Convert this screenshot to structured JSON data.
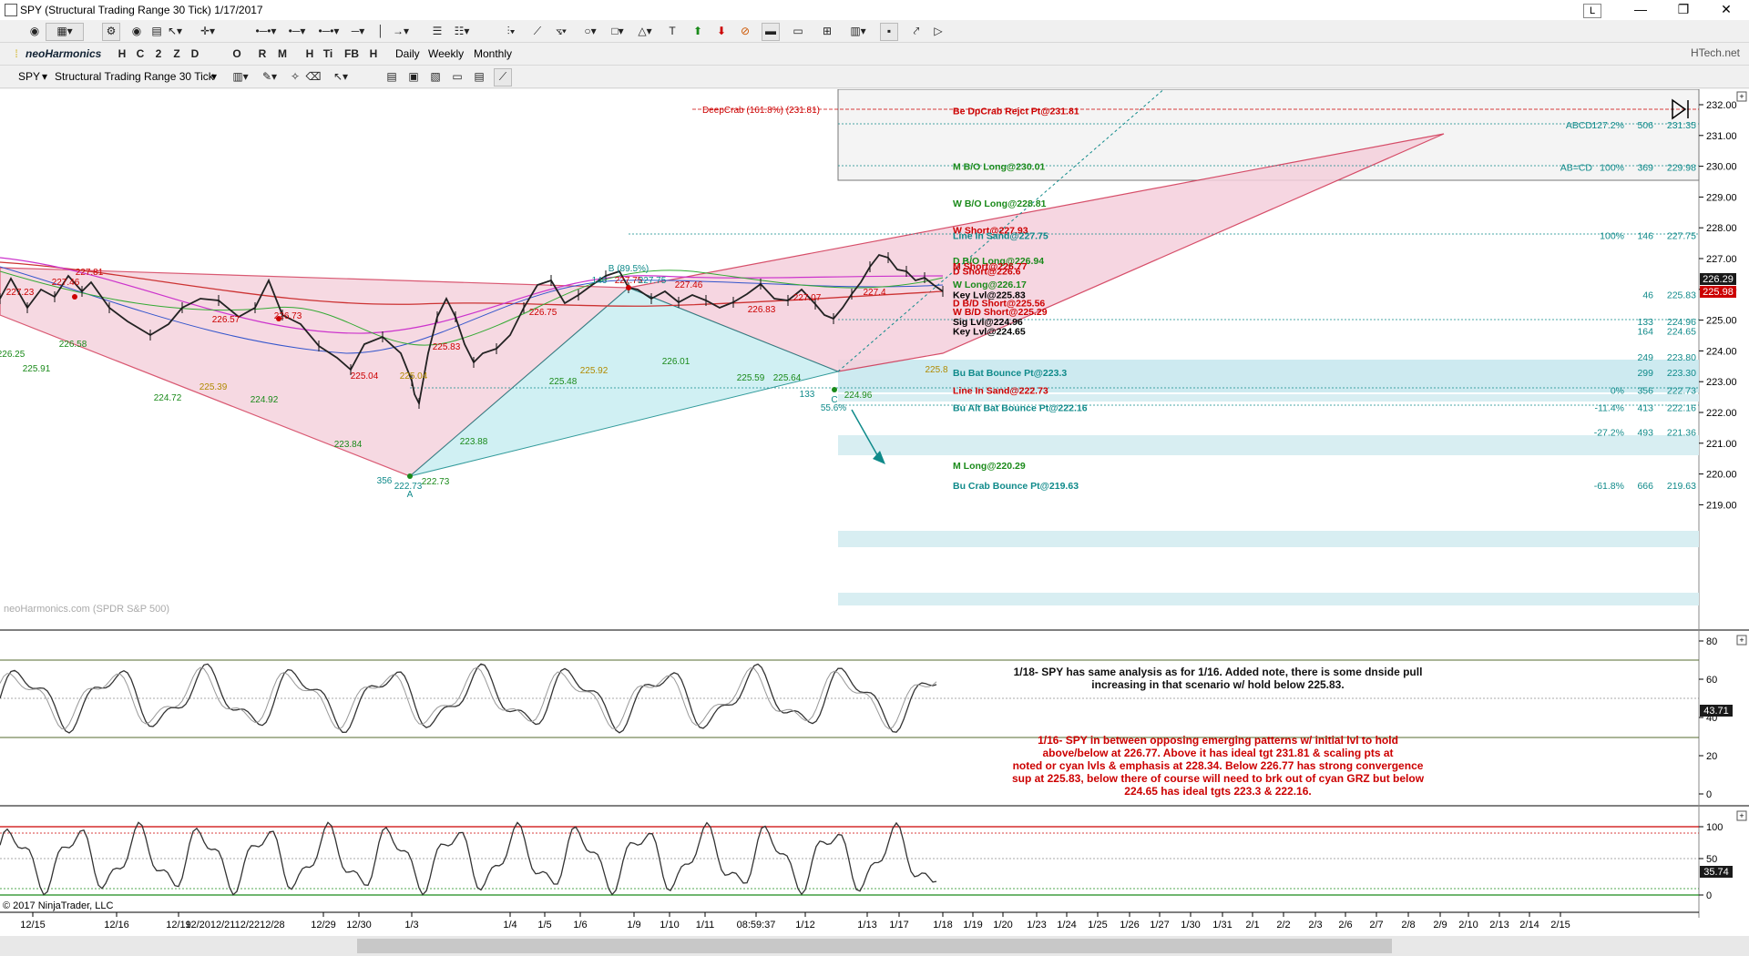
{
  "window": {
    "title": "SPY (Structural Trading Range 30 Tick)  1/17/2017",
    "minimize": "—",
    "maximize": "❐",
    "close": "✕",
    "link_label": "L"
  },
  "toolbar2": {
    "brand": "neoHarmonics",
    "buttons": [
      "H",
      "C",
      "2",
      "Z",
      "D",
      "O",
      "R",
      "M",
      "H",
      "Ti",
      "FB",
      "H"
    ],
    "periods": [
      "Daily",
      "Weekly",
      "Monthly"
    ],
    "site": "HTech.net"
  },
  "toolbar3": {
    "instrument": "SPY",
    "period": "Structural Trading Range 30 Tick"
  },
  "price_chart": {
    "watermark": "neoHarmonics.com (SPDR S&P 500)",
    "y_ticks": [
      "232.00",
      "231.00",
      "230.00",
      "229.00",
      "228.00",
      "227.00",
      "226.00",
      "225.00",
      "224.00",
      "223.00",
      "222.00",
      "221.00",
      "220.00",
      "219.00"
    ],
    "price_badges": [
      "226.29",
      "225.98"
    ],
    "deepcrab_label": "DeepCrab (161.8%) (231.81)",
    "levels": [
      {
        "text": "Be DpCrab Rejct Pt@231.81",
        "color": "#cc0000"
      },
      {
        "text": "M B/O Long@230.01",
        "color": "#1a8a1a"
      },
      {
        "text": "W B/O Long@228.81",
        "color": "#1a8a1a"
      },
      {
        "text": "W Short@227.93",
        "color": "#cc0000"
      },
      {
        "text": "Line In Sand@227.75",
        "color": "#0f8a8a"
      },
      {
        "text": "D B/O Long@226.94",
        "color": "#1a8a1a"
      },
      {
        "text": "M Short@226.77",
        "color": "#cc0000"
      },
      {
        "text": "D Short@226.6",
        "color": "#cc0000"
      },
      {
        "text": "W Long@226.17",
        "color": "#1a8a1a"
      },
      {
        "text": "Key Lvl@225.83",
        "color": "#000000"
      },
      {
        "text": "D B/D Short@225.56",
        "color": "#cc0000"
      },
      {
        "text": "W B/D Short@225.29",
        "color": "#cc0000"
      },
      {
        "text": "Sig Lvl@224.96",
        "color": "#000000"
      },
      {
        "text": "Key Lvl@224.65",
        "color": "#000000"
      },
      {
        "text": "Bu Bat Bounce Pt@223.3",
        "color": "#0f8a8a"
      },
      {
        "text": "Line In Sand@222.73",
        "color": "#cc0000"
      },
      {
        "text": "Bu Alt Bat Bounce Pt@222.16",
        "color": "#0f8a8a"
      },
      {
        "text": "M Long@220.29",
        "color": "#1a8a1a"
      },
      {
        "text": "Bu Crab Bounce Pt@219.63",
        "color": "#0f8a8a"
      }
    ],
    "ratio_table": [
      {
        "pct": "127.2%",
        "n": "506",
        "price": "231.35",
        "label": "ABCD"
      },
      {
        "pct": "100%",
        "n": "369",
        "price": "229.98",
        "label": "AB=CD"
      },
      {
        "pct": "100%",
        "n": "146",
        "price": "227.75",
        "label": ""
      },
      {
        "pct": "",
        "n": "46",
        "price": "225.83",
        "label": ""
      },
      {
        "pct": "",
        "n": "133",
        "price": "224.96",
        "label": ""
      },
      {
        "pct": "",
        "n": "164",
        "price": "224.65",
        "label": ""
      },
      {
        "pct": "",
        "n": "249",
        "price": "223.80",
        "label": ""
      },
      {
        "pct": "",
        "n": "299",
        "price": "223.30",
        "label": ""
      },
      {
        "pct": "0%",
        "n": "356",
        "price": "222.73",
        "label": ""
      },
      {
        "pct": "-11.4%",
        "n": "413",
        "price": "222.16",
        "label": ""
      },
      {
        "pct": "-27.2%",
        "n": "493",
        "price": "221.36",
        "label": ""
      },
      {
        "pct": "-61.8%",
        "n": "666",
        "price": "219.63",
        "label": ""
      }
    ],
    "swing_labels": [
      {
        "text": "227.23",
        "color": "#cc0000"
      },
      {
        "text": "227.46",
        "color": "#cc0000"
      },
      {
        "text": "227.81",
        "color": "#cc0000"
      },
      {
        "text": "226.25",
        "color": "#1a8a1a"
      },
      {
        "text": "225.91",
        "color": "#1a8a1a"
      },
      {
        "text": "226.58",
        "color": "#1a8a1a"
      },
      {
        "text": "226.57",
        "color": "#cc0000"
      },
      {
        "text": "224.72",
        "color": "#1a8a1a"
      },
      {
        "text": "225.39",
        "color": "#b08a00"
      },
      {
        "text": "226.73",
        "color": "#cc0000"
      },
      {
        "text": "224.92",
        "color": "#1a8a1a"
      },
      {
        "text": "223.84",
        "color": "#1a8a1a"
      },
      {
        "text": "225.04",
        "color": "#cc0000"
      },
      {
        "text": "225.04",
        "color": "#b08a00"
      },
      {
        "text": "225.83",
        "color": "#cc0000"
      },
      {
        "text": "356",
        "color": "#0f8a8a"
      },
      {
        "text": "222.73",
        "color": "#0f8a8a"
      },
      {
        "text": "222.73",
        "color": "#1a8a1a"
      },
      {
        "text": "223.88",
        "color": "#1a8a1a"
      },
      {
        "text": "226.75",
        "color": "#cc0000"
      },
      {
        "text": "225.48",
        "color": "#1a8a1a"
      },
      {
        "text": "225.92",
        "color": "#b08a00"
      },
      {
        "text": "B (89.5%)",
        "color": "#0f8a8a"
      },
      {
        "text": "146",
        "color": "#0f8a8a"
      },
      {
        "text": "227.75",
        "color": "#cc0000"
      },
      {
        "text": "227.75",
        "color": "#0f8a8a"
      },
      {
        "text": "227.46",
        "color": "#cc0000"
      },
      {
        "text": "226.01",
        "color": "#1a8a1a"
      },
      {
        "text": "226.83",
        "color": "#cc0000"
      },
      {
        "text": "225.59",
        "color": "#1a8a1a"
      },
      {
        "text": "227.07",
        "color": "#cc0000"
      },
      {
        "text": "225.64",
        "color": "#1a8a1a"
      },
      {
        "text": "227.4",
        "color": "#cc0000"
      },
      {
        "text": "133",
        "color": "#0f8a8a"
      },
      {
        "text": "224.96",
        "color": "#1a8a1a"
      },
      {
        "text": "55.6%",
        "color": "#0f8a8a"
      },
      {
        "text": "225.8",
        "color": "#b08a00"
      },
      {
        "text": "A",
        "color": "#0f8a8a"
      },
      {
        "text": "C",
        "color": "#0f8a8a"
      }
    ]
  },
  "note": {
    "line1": "1/18- SPY has same analysis as for 1/16.  Added note, there is some dnside pull",
    "line2": "increasing in that scenario w/ hold below 225.83.",
    "red_lines": [
      "1/16- SPY in between opposing emerging patterns w/ initial lvl to hold",
      "above/below at 226.77.  Above it has ideal tgt 231.81 & scaling pts at",
      "noted or cyan lvls & emphasis at 228.34.  Below 226.77 has strong convergence",
      "sup at 225.83, below there of course will need to brk out of cyan GRZ but below",
      "224.65 has ideal tgts 223.3 & 222.16."
    ]
  },
  "osc1": {
    "y_ticks": [
      "80",
      "60",
      "40",
      "20",
      "0"
    ],
    "badge": "43.71"
  },
  "osc2": {
    "y_ticks": [
      "100",
      "50",
      "0"
    ],
    "badge": "35.74"
  },
  "copyright": "© 2017 NinjaTrader, LLC",
  "x_ticks": [
    "12/15",
    "12/16",
    "12/19",
    "12/20",
    "12/21",
    "12/22",
    "12/28",
    "12/29",
    "12/30",
    "1/3",
    "1/4",
    "1/5",
    "1/6",
    "1/9",
    "1/10",
    "1/11",
    "08:59:37",
    "1/12",
    "1/13",
    "1/17",
    "1/18",
    "1/19",
    "1/20",
    "1/23",
    "1/24",
    "1/25",
    "1/26",
    "1/27",
    "1/30",
    "1/31",
    "2/1",
    "2/2",
    "2/3",
    "2/6",
    "2/7",
    "2/8",
    "2/9",
    "2/10",
    "2/13",
    "2/14",
    "2/15"
  ],
  "x_tick_compact": "12/2012/2112/2212/28",
  "colors": {
    "bear": "#cc0000",
    "bull": "#1a8a1a",
    "cyan": "#0f8a8a",
    "pinkfill": "#f5d0dc",
    "cyanfill": "#c8eef2"
  }
}
